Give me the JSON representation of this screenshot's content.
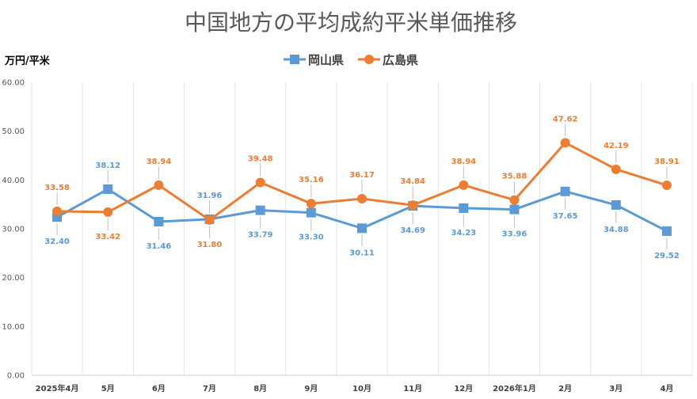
{
  "chart_data": {
    "type": "line",
    "title": "中国地方の平均成約平米単価推移",
    "ylabel": "万円/平米",
    "xlabel": "",
    "ylim": [
      0,
      60
    ],
    "yticks": [
      "0.00",
      "10.00",
      "20.00",
      "30.00",
      "40.00",
      "50.00",
      "60.00"
    ],
    "categories": [
      "2025年4月",
      "5月",
      "6月",
      "7月",
      "8月",
      "9月",
      "10月",
      "11月",
      "12月",
      "2026年1月",
      "2月",
      "3月",
      "4月"
    ],
    "legend_position": "top",
    "grid": "vertical",
    "series": [
      {
        "name": "岡山県",
        "marker": "square",
        "color": "#5B9BD5",
        "values": [
          32.4,
          38.12,
          31.46,
          31.96,
          33.79,
          33.3,
          30.11,
          34.69,
          34.23,
          33.96,
          37.65,
          34.88,
          29.52
        ],
        "labels": [
          "32.40",
          "38.12",
          "31.46",
          "31.96",
          "33.79",
          "33.30",
          "30.11",
          "34.69",
          "34.23",
          "33.96",
          "37.65",
          "34.88",
          "29.52"
        ]
      },
      {
        "name": "広島県",
        "marker": "circle",
        "color": "#ED7D31",
        "values": [
          33.58,
          33.42,
          38.94,
          31.8,
          39.48,
          35.16,
          36.17,
          34.84,
          38.94,
          35.88,
          47.62,
          42.19,
          38.91
        ],
        "labels": [
          "33.58",
          "33.42",
          "38.94",
          "31.80",
          "39.48",
          "35.16",
          "36.17",
          "34.84",
          "38.94",
          "35.88",
          "47.62",
          "42.19",
          "38.91"
        ]
      }
    ]
  }
}
